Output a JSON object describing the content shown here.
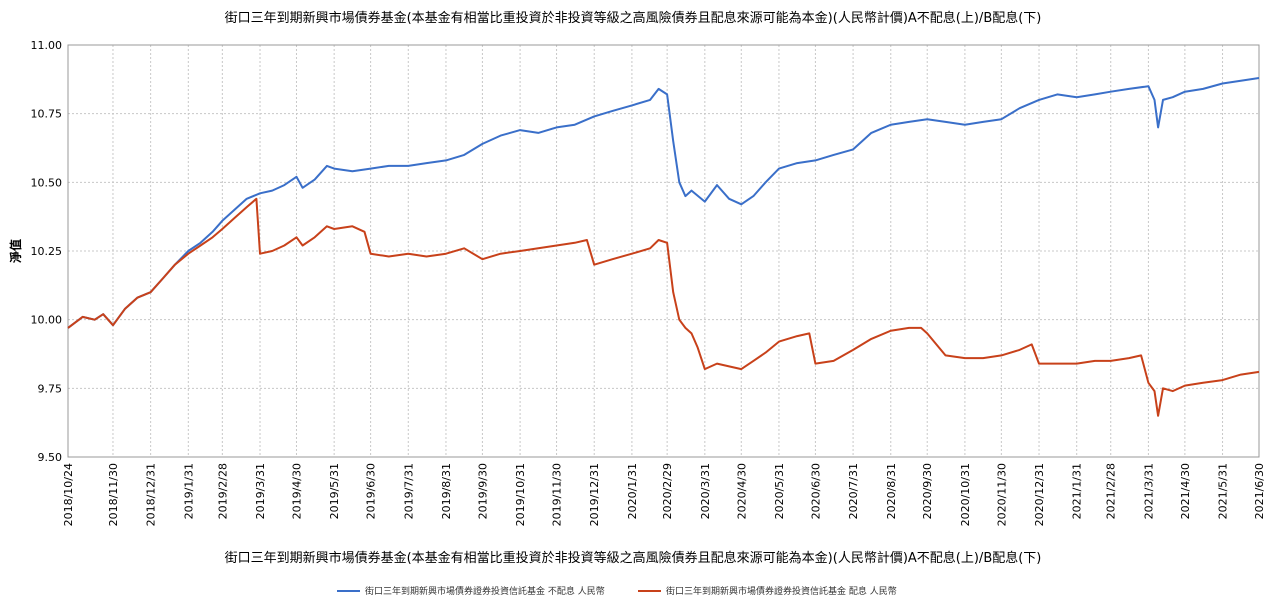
{
  "chart_data": {
    "type": "line",
    "title": "街口三年到期新興市場債券基金(本基金有相當比重投資於非投資等級之高風險債券且配息來源可能為本金)(人民幣計價)A不配息(上)/B配息(下)",
    "xlabel": "街口三年到期新興市場債券基金(本基金有相當比重投資於非投資等級之高風險債券且配息來源可能為本金)(人民幣計價)A不配息(上)/B配息(下)",
    "ylabel": "淨值",
    "ylim": [
      9.5,
      11.0
    ],
    "yticks": [
      "9.50",
      "9.75",
      "10.00",
      "10.25",
      "10.50",
      "10.75",
      "11.00"
    ],
    "x_ticks": [
      "2018/10/24",
      "2018/11/30",
      "2018/12/31",
      "2019/1/31",
      "2019/2/28",
      "2019/3/31",
      "2019/4/30",
      "2019/5/31",
      "2019/6/30",
      "2019/7/31",
      "2019/8/31",
      "2019/9/30",
      "2019/10/31",
      "2019/11/30",
      "2019/12/31",
      "2020/1/31",
      "2020/2/29",
      "2020/3/31",
      "2020/4/30",
      "2020/5/31",
      "2020/6/30",
      "2020/7/31",
      "2020/8/31",
      "2020/9/30",
      "2020/10/31",
      "2020/11/30",
      "2020/12/31",
      "2021/1/31",
      "2021/2/28",
      "2021/3/31",
      "2021/4/30",
      "2021/5/31",
      "2021/6/30"
    ],
    "grid": true,
    "legend_position": "bottom",
    "series": [
      {
        "name": "街口三年到期新興市場債券證券投資信託基金 不配息 人民幣",
        "color": "#3a6fc9",
        "x": [
          "2018/10/24",
          "2018/11/5",
          "2018/11/15",
          "2018/11/22",
          "2018/11/30",
          "2018/12/10",
          "2018/12/20",
          "2018/12/31",
          "2019/1/10",
          "2019/1/20",
          "2019/1/31",
          "2019/2/10",
          "2019/2/20",
          "2019/2/28",
          "2019/3/10",
          "2019/3/20",
          "2019/3/31",
          "2019/4/10",
          "2019/4/20",
          "2019/4/30",
          "2019/5/5",
          "2019/5/15",
          "2019/5/25",
          "2019/5/31",
          "2019/6/15",
          "2019/6/30",
          "2019/7/15",
          "2019/7/31",
          "2019/8/15",
          "2019/8/31",
          "2019/9/15",
          "2019/9/30",
          "2019/10/15",
          "2019/10/31",
          "2019/11/15",
          "2019/11/30",
          "2019/12/15",
          "2019/12/31",
          "2020/1/15",
          "2020/1/31",
          "2020/2/15",
          "2020/2/22",
          "2020/2/29",
          "2020/3/5",
          "2020/3/10",
          "2020/3/15",
          "2020/3/20",
          "2020/3/31",
          "2020/4/10",
          "2020/4/20",
          "2020/4/30",
          "2020/5/10",
          "2020/5/20",
          "2020/5/31",
          "2020/6/15",
          "2020/6/30",
          "2020/7/15",
          "2020/7/31",
          "2020/8/15",
          "2020/8/31",
          "2020/9/15",
          "2020/9/30",
          "2020/10/15",
          "2020/10/31",
          "2020/11/15",
          "2020/11/30",
          "2020/12/15",
          "2020/12/31",
          "2021/1/15",
          "2021/1/31",
          "2021/2/15",
          "2021/2/28",
          "2021/3/15",
          "2021/3/31",
          "2021/4/5",
          "2021/4/8",
          "2021/4/12",
          "2021/4/20",
          "2021/4/30",
          "2021/5/15",
          "2021/5/31",
          "2021/6/15",
          "2021/6/30"
        ],
        "values": [
          9.97,
          10.01,
          10.0,
          10.02,
          9.98,
          10.04,
          10.08,
          10.1,
          10.15,
          10.2,
          10.25,
          10.28,
          10.32,
          10.36,
          10.4,
          10.44,
          10.46,
          10.47,
          10.49,
          10.52,
          10.48,
          10.51,
          10.56,
          10.55,
          10.54,
          10.55,
          10.56,
          10.56,
          10.57,
          10.58,
          10.6,
          10.64,
          10.67,
          10.69,
          10.68,
          10.7,
          10.71,
          10.74,
          10.76,
          10.78,
          10.8,
          10.84,
          10.82,
          10.65,
          10.5,
          10.45,
          10.47,
          10.43,
          10.49,
          10.44,
          10.42,
          10.45,
          10.5,
          10.55,
          10.57,
          10.58,
          10.6,
          10.62,
          10.68,
          10.71,
          10.72,
          10.73,
          10.72,
          10.71,
          10.72,
          10.73,
          10.77,
          10.8,
          10.82,
          10.81,
          10.82,
          10.83,
          10.84,
          10.85,
          10.8,
          10.7,
          10.8,
          10.81,
          10.83,
          10.84,
          10.86,
          10.87,
          10.88
        ]
      },
      {
        "name": "街口三年到期新興市場債券證券投資信託基金 配息 人民幣",
        "color": "#c8411a",
        "x": [
          "2018/10/24",
          "2018/11/5",
          "2018/11/15",
          "2018/11/22",
          "2018/11/30",
          "2018/12/10",
          "2018/12/20",
          "2018/12/31",
          "2019/1/10",
          "2019/1/20",
          "2019/1/31",
          "2019/2/10",
          "2019/2/20",
          "2019/2/28",
          "2019/3/10",
          "2019/3/20",
          "2019/3/28",
          "2019/3/31",
          "2019/4/10",
          "2019/4/20",
          "2019/4/30",
          "2019/5/5",
          "2019/5/15",
          "2019/5/25",
          "2019/5/31",
          "2019/6/15",
          "2019/6/25",
          "2019/6/30",
          "2019/7/15",
          "2019/7/31",
          "2019/8/15",
          "2019/8/31",
          "2019/9/15",
          "2019/9/30",
          "2019/10/15",
          "2019/10/31",
          "2019/11/15",
          "2019/11/30",
          "2019/12/15",
          "2019/12/25",
          "2019/12/31",
          "2020/1/15",
          "2020/1/31",
          "2020/2/15",
          "2020/2/22",
          "2020/2/29",
          "2020/3/5",
          "2020/3/10",
          "2020/3/15",
          "2020/3/20",
          "2020/3/25",
          "2020/3/31",
          "2020/4/10",
          "2020/4/20",
          "2020/4/30",
          "2020/5/10",
          "2020/5/20",
          "2020/5/31",
          "2020/6/15",
          "2020/6/25",
          "2020/6/30",
          "2020/7/15",
          "2020/7/31",
          "2020/8/15",
          "2020/8/31",
          "2020/9/15",
          "2020/9/25",
          "2020/9/30",
          "2020/10/15",
          "2020/10/31",
          "2020/11/15",
          "2020/11/30",
          "2020/12/15",
          "2020/12/25",
          "2020/12/31",
          "2021/1/15",
          "2021/1/31",
          "2021/2/15",
          "2021/2/28",
          "2021/3/15",
          "2021/3/25",
          "2021/3/31",
          "2021/4/5",
          "2021/4/8",
          "2021/4/12",
          "2021/4/20",
          "2021/4/30",
          "2021/5/15",
          "2021/5/31",
          "2021/6/15",
          "2021/6/30"
        ],
        "values": [
          9.97,
          10.01,
          10.0,
          10.02,
          9.98,
          10.04,
          10.08,
          10.1,
          10.15,
          10.2,
          10.24,
          10.27,
          10.3,
          10.33,
          10.37,
          10.41,
          10.44,
          10.24,
          10.25,
          10.27,
          10.3,
          10.27,
          10.3,
          10.34,
          10.33,
          10.34,
          10.32,
          10.24,
          10.23,
          10.24,
          10.23,
          10.24,
          10.26,
          10.22,
          10.24,
          10.25,
          10.26,
          10.27,
          10.28,
          10.29,
          10.2,
          10.22,
          10.24,
          10.26,
          10.29,
          10.28,
          10.1,
          10.0,
          9.97,
          9.95,
          9.9,
          9.82,
          9.84,
          9.83,
          9.82,
          9.85,
          9.88,
          9.92,
          9.94,
          9.95,
          9.84,
          9.85,
          9.89,
          9.93,
          9.96,
          9.97,
          9.97,
          9.95,
          9.87,
          9.86,
          9.86,
          9.87,
          9.89,
          9.91,
          9.84,
          9.84,
          9.84,
          9.85,
          9.85,
          9.86,
          9.87,
          9.77,
          9.74,
          9.65,
          9.75,
          9.74,
          9.76,
          9.77,
          9.78,
          9.8,
          9.81
        ]
      }
    ]
  }
}
